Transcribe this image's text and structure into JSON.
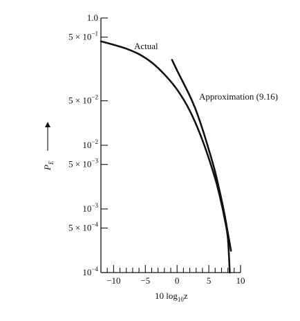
{
  "chart_data": {
    "type": "line",
    "title": "",
    "xlabel": "10 log10z",
    "xlabel_main": "10 log",
    "xlabel_sub": "10",
    "xlabel_tail": "z",
    "ylabel": "P_E",
    "ylabel_main": "P",
    "ylabel_sub": "E",
    "yscale": "log",
    "xlim": [
      -12,
      10
    ],
    "ylim": [
      0.0001,
      1.0
    ],
    "x_ticks": [
      {
        "value": -10,
        "label": "−10"
      },
      {
        "value": -5,
        "label": "−5"
      },
      {
        "value": 0,
        "label": "0"
      },
      {
        "value": 5,
        "label": "5"
      },
      {
        "value": 10,
        "label": "10"
      }
    ],
    "y_ticks": [
      {
        "value": 1.0,
        "mantissa": "1.0",
        "exp": ""
      },
      {
        "value": 0.5,
        "mantissa": "5 × 10",
        "exp": "−1"
      },
      {
        "value": 0.05,
        "mantissa": "5 × 10",
        "exp": "−2"
      },
      {
        "value": 0.01,
        "mantissa": "10",
        "exp": "−2"
      },
      {
        "value": 0.005,
        "mantissa": "5 × 10",
        "exp": "−3"
      },
      {
        "value": 0.001,
        "mantissa": "10",
        "exp": "−3"
      },
      {
        "value": 0.0005,
        "mantissa": "5 × 10",
        "exp": "−4"
      },
      {
        "value": 0.0001,
        "mantissa": "10",
        "exp": "−4"
      }
    ],
    "series": [
      {
        "name": "Actual",
        "x": [
          -12,
          -10,
          -8,
          -6,
          -4,
          -2,
          0,
          2,
          4,
          6,
          7,
          7.5,
          8.0,
          8.3
        ],
        "y": [
          0.43,
          0.38,
          0.33,
          0.27,
          0.2,
          0.13,
          0.075,
          0.035,
          0.012,
          0.003,
          0.0012,
          0.0007,
          0.00035,
          0.0001
        ]
      },
      {
        "name": "Approximation (9.16)",
        "x": [
          -0.8,
          0,
          1,
          2,
          3,
          4,
          5,
          6,
          7,
          7.5,
          8.0,
          8.5
        ],
        "y": [
          0.22,
          0.15,
          0.095,
          0.06,
          0.035,
          0.018,
          0.0085,
          0.0038,
          0.0014,
          0.0008,
          0.00042,
          0.00022
        ]
      }
    ],
    "grid": false,
    "legend": "none"
  }
}
